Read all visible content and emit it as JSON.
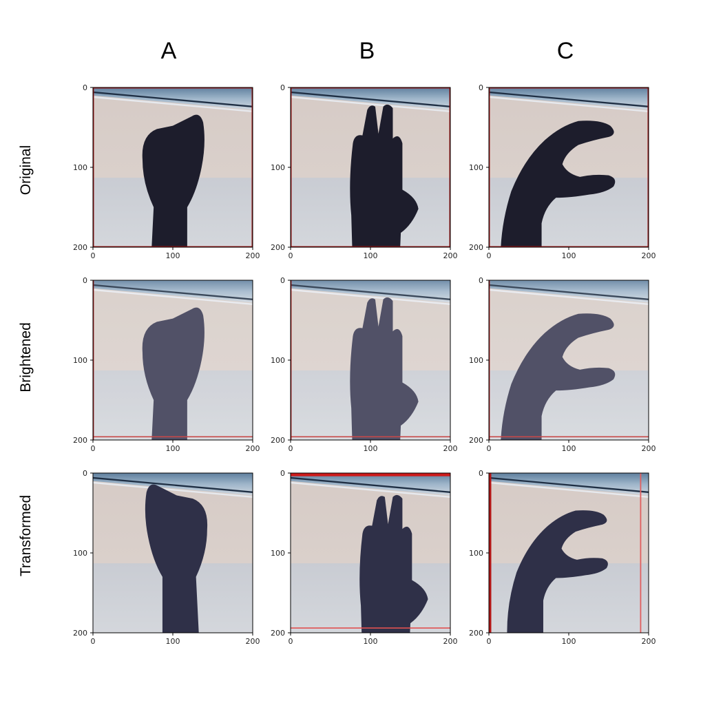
{
  "columns": [
    {
      "label": "A",
      "pose": "fist"
    },
    {
      "label": "B",
      "pose": "flat"
    },
    {
      "label": "C",
      "pose": "c"
    }
  ],
  "rows": [
    {
      "label": "Original",
      "variant": "original"
    },
    {
      "label": "Brightened",
      "variant": "brightened"
    },
    {
      "label": "Transformed",
      "variant": "transformed"
    }
  ],
  "axes": {
    "x_ticks": [
      "0",
      "100",
      "200"
    ],
    "y_ticks": [
      "0",
      "100",
      "200"
    ],
    "xlim": [
      0,
      200
    ],
    "ylim": [
      200,
      0
    ]
  },
  "colors": {
    "wall": "#d8cfc8",
    "floor": "#ccd0d6",
    "blind": "#7d9cb8",
    "hand": "#1d1d2c",
    "border": "#a01818"
  }
}
